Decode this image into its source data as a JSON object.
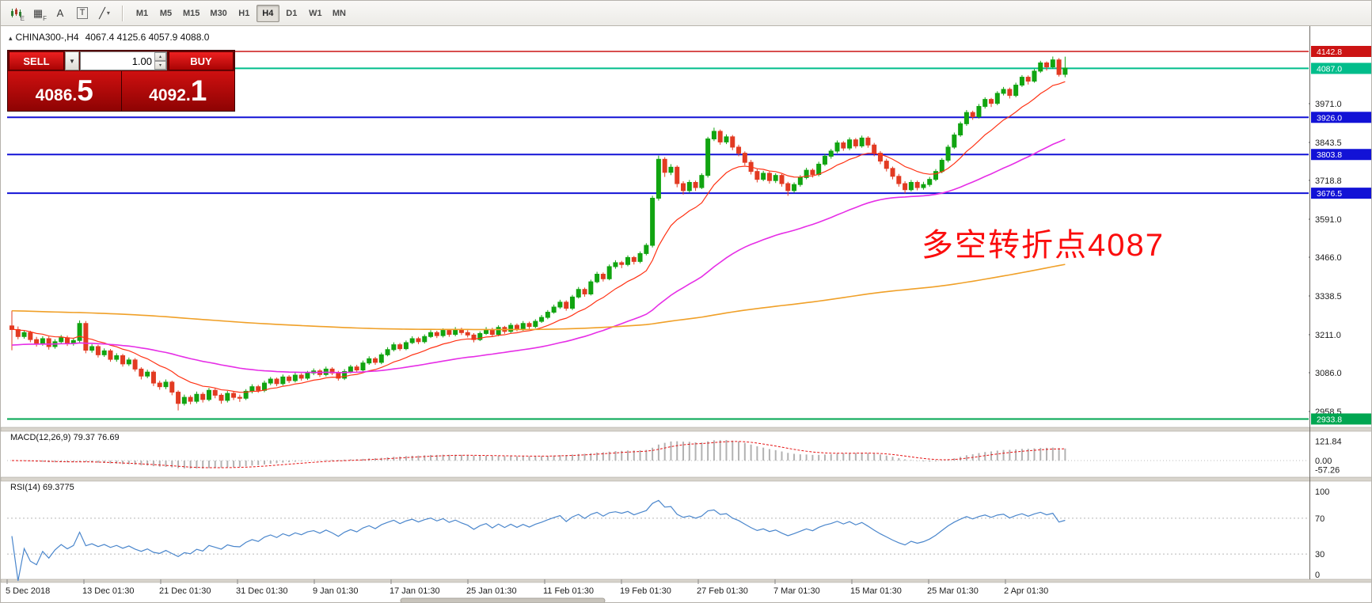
{
  "toolbar": {
    "sub_e": "E",
    "sub_f": "F",
    "glyph_grid": "▦",
    "glyph_a": "A",
    "glyph_t": "T",
    "glyph_line": "╱",
    "dropdown": "▾",
    "timeframes": [
      "M1",
      "M5",
      "M15",
      "M30",
      "H1",
      "H4",
      "D1",
      "W1",
      "MN"
    ],
    "active_timeframe": "H4"
  },
  "trade_panel": {
    "sell_label": "SELL",
    "buy_label": "BUY",
    "volume": "1.00",
    "spin_up": "▴",
    "spin_down": "▾",
    "dropdown": "▼",
    "sell_price_int": "4086.",
    "sell_price_pip": "5",
    "buy_price_int": "4092.",
    "buy_price_pip": "1"
  },
  "chart_data": {
    "type": "candlestick",
    "symbol": "CHINA300-,H4",
    "collapse_arrow": "▴",
    "ohlc_text": "4067.4 4125.6 4057.9 4088.0",
    "up_color": "#11a411",
    "down_color": "#e23b22",
    "price_ticks": [
      "3971.0",
      "3843.5",
      "3718.8",
      "3591.0",
      "3466.0",
      "3338.5",
      "3211.0",
      "3086.0",
      "2958.5"
    ],
    "time_ticks": [
      "5 Dec 2018",
      "13 Dec 01:30",
      "21 Dec 01:30",
      "31 Dec 01:30",
      "9 Jan 01:30",
      "17 Jan 01:30",
      "25 Jan 01:30",
      "11 Feb 01:30",
      "19 Feb 01:30",
      "27 Feb 01:30",
      "7 Mar 01:30",
      "15 Mar 01:30",
      "25 Mar 01:30",
      "2 Apr 01:30"
    ],
    "levels": [
      {
        "price": 4142.8,
        "label": "4142.8",
        "color": "#cc1414",
        "width": 1.4
      },
      {
        "price": 4087.0,
        "label": "4087.0",
        "color": "#00bd8b",
        "width": 2
      },
      {
        "price": 3926.0,
        "label": "3926.0",
        "color": "#1212d6",
        "width": 2
      },
      {
        "price": 3803.8,
        "label": "3803.8",
        "color": "#1212d6",
        "width": 2
      },
      {
        "price": 3676.5,
        "label": "3676.5",
        "color": "#1212d6",
        "width": 2
      },
      {
        "price": 2933.8,
        "label": "2933.8",
        "color": "#00a651",
        "width": 2
      }
    ],
    "annotation": {
      "text": "多空转折点4087",
      "color": "#fb0d0d"
    },
    "moving_averages": [
      {
        "name": "ma-fast",
        "period": 13,
        "seed": 3230,
        "color": "#ff3214",
        "width": 1.2
      },
      {
        "name": "ma-medium",
        "period": 55,
        "seed": 3175,
        "color": "#e62ee6",
        "width": 1.6
      },
      {
        "name": "ma-slow",
        "period": 340,
        "seed": 3290,
        "color": "#f0a028",
        "width": 1.6
      }
    ],
    "macd": {
      "label": "MACD(12,26,9) 79.37 76.69",
      "fast": 12,
      "slow": 26,
      "signal": 9,
      "axis_values": [
        121.84,
        0,
        -57.26
      ],
      "axis_labels": [
        "121.84",
        "0.00",
        "-57.26"
      ],
      "bar_color": "#b2b2b2",
      "signal_color": "#e51212"
    },
    "rsi": {
      "label": "RSI(14) 69.3775",
      "period": 14,
      "axis_values": [
        100,
        70,
        30,
        0
      ],
      "axis_labels": [
        "100",
        "70",
        "30",
        "0"
      ],
      "levels": [
        70,
        30
      ],
      "color": "#4a86cc"
    },
    "candles": [
      [
        3240,
        3290,
        3160,
        3228
      ],
      [
        3228,
        3238,
        3196,
        3205
      ],
      [
        3205,
        3226,
        3198,
        3218
      ],
      [
        3218,
        3224,
        3186,
        3195
      ],
      [
        3195,
        3204,
        3172,
        3182
      ],
      [
        3182,
        3206,
        3175,
        3198
      ],
      [
        3198,
        3205,
        3162,
        3172
      ],
      [
        3172,
        3196,
        3165,
        3188
      ],
      [
        3188,
        3210,
        3180,
        3201
      ],
      [
        3201,
        3208,
        3174,
        3182
      ],
      [
        3182,
        3200,
        3175,
        3192
      ],
      [
        3192,
        3258,
        3186,
        3248
      ],
      [
        3248,
        3256,
        3150,
        3160
      ],
      [
        3160,
        3180,
        3152,
        3172
      ],
      [
        3172,
        3178,
        3136,
        3145
      ],
      [
        3145,
        3166,
        3138,
        3158
      ],
      [
        3158,
        3164,
        3122,
        3130
      ],
      [
        3130,
        3150,
        3122,
        3142
      ],
      [
        3142,
        3148,
        3106,
        3115
      ],
      [
        3115,
        3136,
        3108,
        3128
      ],
      [
        3128,
        3134,
        3090,
        3098
      ],
      [
        3098,
        3104,
        3064,
        3075
      ],
      [
        3075,
        3096,
        3068,
        3088
      ],
      [
        3088,
        3094,
        3042,
        3052
      ],
      [
        3052,
        3060,
        3030,
        3040
      ],
      [
        3040,
        3064,
        3032,
        3055
      ],
      [
        3055,
        3060,
        3012,
        3022
      ],
      [
        3022,
        3028,
        2962,
        2985
      ],
      [
        2985,
        3014,
        2978,
        3005
      ],
      [
        3005,
        3012,
        2982,
        2992
      ],
      [
        2992,
        3024,
        2985,
        3015
      ],
      [
        3015,
        3022,
        2988,
        2998
      ],
      [
        2998,
        3036,
        2992,
        3028
      ],
      [
        3028,
        3034,
        3002,
        3012
      ],
      [
        3012,
        3018,
        2984,
        2995
      ],
      [
        2995,
        3026,
        2988,
        3018
      ],
      [
        3018,
        3024,
        2996,
        3005
      ],
      [
        3005,
        3014,
        2990,
        3002
      ],
      [
        3002,
        3032,
        2996,
        3025
      ],
      [
        3025,
        3048,
        3018,
        3040
      ],
      [
        3040,
        3046,
        3020,
        3028
      ],
      [
        3028,
        3060,
        3022,
        3052
      ],
      [
        3052,
        3072,
        3045,
        3065
      ],
      [
        3065,
        3070,
        3042,
        3050
      ],
      [
        3050,
        3080,
        3044,
        3072
      ],
      [
        3072,
        3078,
        3052,
        3060
      ],
      [
        3060,
        3086,
        3054,
        3078
      ],
      [
        3078,
        3084,
        3060,
        3068
      ],
      [
        3068,
        3092,
        3062,
        3085
      ],
      [
        3085,
        3100,
        3078,
        3092
      ],
      [
        3092,
        3098,
        3072,
        3080
      ],
      [
        3080,
        3106,
        3074,
        3098
      ],
      [
        3098,
        3104,
        3078,
        3085
      ],
      [
        3085,
        3092,
        3060,
        3068
      ],
      [
        3068,
        3098,
        3062,
        3090
      ],
      [
        3090,
        3112,
        3084,
        3105
      ],
      [
        3105,
        3112,
        3088,
        3095
      ],
      [
        3095,
        3126,
        3090,
        3118
      ],
      [
        3118,
        3140,
        3112,
        3132
      ],
      [
        3132,
        3138,
        3112,
        3120
      ],
      [
        3120,
        3152,
        3114,
        3145
      ],
      [
        3145,
        3170,
        3140,
        3162
      ],
      [
        3162,
        3186,
        3156,
        3178
      ],
      [
        3178,
        3184,
        3158,
        3165
      ],
      [
        3165,
        3192,
        3160,
        3185
      ],
      [
        3185,
        3206,
        3180,
        3198
      ],
      [
        3198,
        3204,
        3180,
        3188
      ],
      [
        3188,
        3212,
        3182,
        3205
      ],
      [
        3205,
        3226,
        3200,
        3218
      ],
      [
        3218,
        3224,
        3200,
        3208
      ],
      [
        3208,
        3232,
        3202,
        3225
      ],
      [
        3225,
        3230,
        3204,
        3212
      ],
      [
        3212,
        3236,
        3206,
        3228
      ],
      [
        3228,
        3234,
        3210,
        3218
      ],
      [
        3218,
        3226,
        3202,
        3210
      ],
      [
        3210,
        3216,
        3186,
        3195
      ],
      [
        3195,
        3222,
        3190,
        3215
      ],
      [
        3215,
        3236,
        3210,
        3228
      ],
      [
        3228,
        3234,
        3204,
        3212
      ],
      [
        3212,
        3242,
        3206,
        3235
      ],
      [
        3235,
        3240,
        3214,
        3222
      ],
      [
        3222,
        3250,
        3216,
        3242
      ],
      [
        3242,
        3248,
        3222,
        3230
      ],
      [
        3230,
        3256,
        3224,
        3248
      ],
      [
        3248,
        3254,
        3230,
        3238
      ],
      [
        3238,
        3262,
        3232,
        3255
      ],
      [
        3255,
        3276,
        3250,
        3268
      ],
      [
        3268,
        3292,
        3262,
        3285
      ],
      [
        3285,
        3310,
        3280,
        3302
      ],
      [
        3302,
        3326,
        3296,
        3318
      ],
      [
        3318,
        3324,
        3290,
        3298
      ],
      [
        3298,
        3342,
        3292,
        3335
      ],
      [
        3335,
        3368,
        3330,
        3360
      ],
      [
        3360,
        3366,
        3336,
        3345
      ],
      [
        3345,
        3392,
        3340,
        3385
      ],
      [
        3385,
        3418,
        3380,
        3410
      ],
      [
        3410,
        3416,
        3386,
        3395
      ],
      [
        3395,
        3442,
        3390,
        3435
      ],
      [
        3435,
        3456,
        3428,
        3448
      ],
      [
        3448,
        3454,
        3430,
        3442
      ],
      [
        3442,
        3472,
        3436,
        3465
      ],
      [
        3465,
        3470,
        3442,
        3452
      ],
      [
        3452,
        3485,
        3446,
        3478
      ],
      [
        3478,
        3512,
        3472,
        3505
      ],
      [
        3505,
        3668,
        3498,
        3660
      ],
      [
        3660,
        3800,
        3652,
        3788
      ],
      [
        3788,
        3795,
        3730,
        3745
      ],
      [
        3745,
        3772,
        3736,
        3762
      ],
      [
        3762,
        3768,
        3696,
        3708
      ],
      [
        3708,
        3716,
        3672,
        3685
      ],
      [
        3685,
        3720,
        3678,
        3712
      ],
      [
        3712,
        3718,
        3684,
        3695
      ],
      [
        3695,
        3742,
        3690,
        3735
      ],
      [
        3735,
        3862,
        3728,
        3855
      ],
      [
        3855,
        3892,
        3848,
        3880
      ],
      [
        3880,
        3886,
        3836,
        3845
      ],
      [
        3845,
        3870,
        3838,
        3862
      ],
      [
        3862,
        3868,
        3818,
        3828
      ],
      [
        3828,
        3836,
        3798,
        3808
      ],
      [
        3808,
        3814,
        3768,
        3778
      ],
      [
        3778,
        3786,
        3738,
        3748
      ],
      [
        3748,
        3756,
        3712,
        3722
      ],
      [
        3722,
        3750,
        3716,
        3742
      ],
      [
        3742,
        3748,
        3708,
        3718
      ],
      [
        3718,
        3742,
        3710,
        3735
      ],
      [
        3735,
        3740,
        3698,
        3708
      ],
      [
        3708,
        3714,
        3668,
        3685
      ],
      [
        3685,
        3712,
        3678,
        3705
      ],
      [
        3705,
        3736,
        3698,
        3728
      ],
      [
        3728,
        3760,
        3722,
        3752
      ],
      [
        3752,
        3758,
        3728,
        3738
      ],
      [
        3738,
        3780,
        3732,
        3772
      ],
      [
        3772,
        3806,
        3766,
        3798
      ],
      [
        3798,
        3822,
        3790,
        3815
      ],
      [
        3815,
        3850,
        3808,
        3842
      ],
      [
        3842,
        3848,
        3816,
        3825
      ],
      [
        3825,
        3860,
        3818,
        3852
      ],
      [
        3852,
        3858,
        3824,
        3832
      ],
      [
        3832,
        3866,
        3826,
        3858
      ],
      [
        3858,
        3864,
        3826,
        3835
      ],
      [
        3835,
        3842,
        3798,
        3808
      ],
      [
        3808,
        3815,
        3772,
        3782
      ],
      [
        3782,
        3790,
        3748,
        3758
      ],
      [
        3758,
        3764,
        3722,
        3732
      ],
      [
        3732,
        3740,
        3698,
        3708
      ],
      [
        3708,
        3716,
        3676,
        3688
      ],
      [
        3688,
        3720,
        3682,
        3712
      ],
      [
        3712,
        3718,
        3686,
        3695
      ],
      [
        3695,
        3714,
        3688,
        3705
      ],
      [
        3705,
        3730,
        3698,
        3722
      ],
      [
        3722,
        3756,
        3716,
        3748
      ],
      [
        3748,
        3792,
        3742,
        3785
      ],
      [
        3785,
        3836,
        3778,
        3828
      ],
      [
        3828,
        3876,
        3822,
        3868
      ],
      [
        3868,
        3912,
        3862,
        3905
      ],
      [
        3905,
        3950,
        3898,
        3942
      ],
      [
        3942,
        3948,
        3918,
        3928
      ],
      [
        3928,
        3970,
        3922,
        3962
      ],
      [
        3962,
        3992,
        3955,
        3985
      ],
      [
        3985,
        3990,
        3960,
        3972
      ],
      [
        3972,
        4012,
        3966,
        4005
      ],
      [
        4005,
        4026,
        3998,
        4018
      ],
      [
        4018,
        4024,
        3988,
        3998
      ],
      [
        3998,
        4040,
        3992,
        4032
      ],
      [
        4032,
        4065,
        4026,
        4058
      ],
      [
        4058,
        4064,
        4034,
        4045
      ],
      [
        4045,
        4085,
        4040,
        4078
      ],
      [
        4078,
        4112,
        4072,
        4105
      ],
      [
        4105,
        4110,
        4080,
        4092
      ],
      [
        4092,
        4126,
        4086,
        4115
      ],
      [
        4115,
        4121,
        4060,
        4067
      ],
      [
        4067.4,
        4125.6,
        4057.9,
        4088.0
      ]
    ]
  }
}
